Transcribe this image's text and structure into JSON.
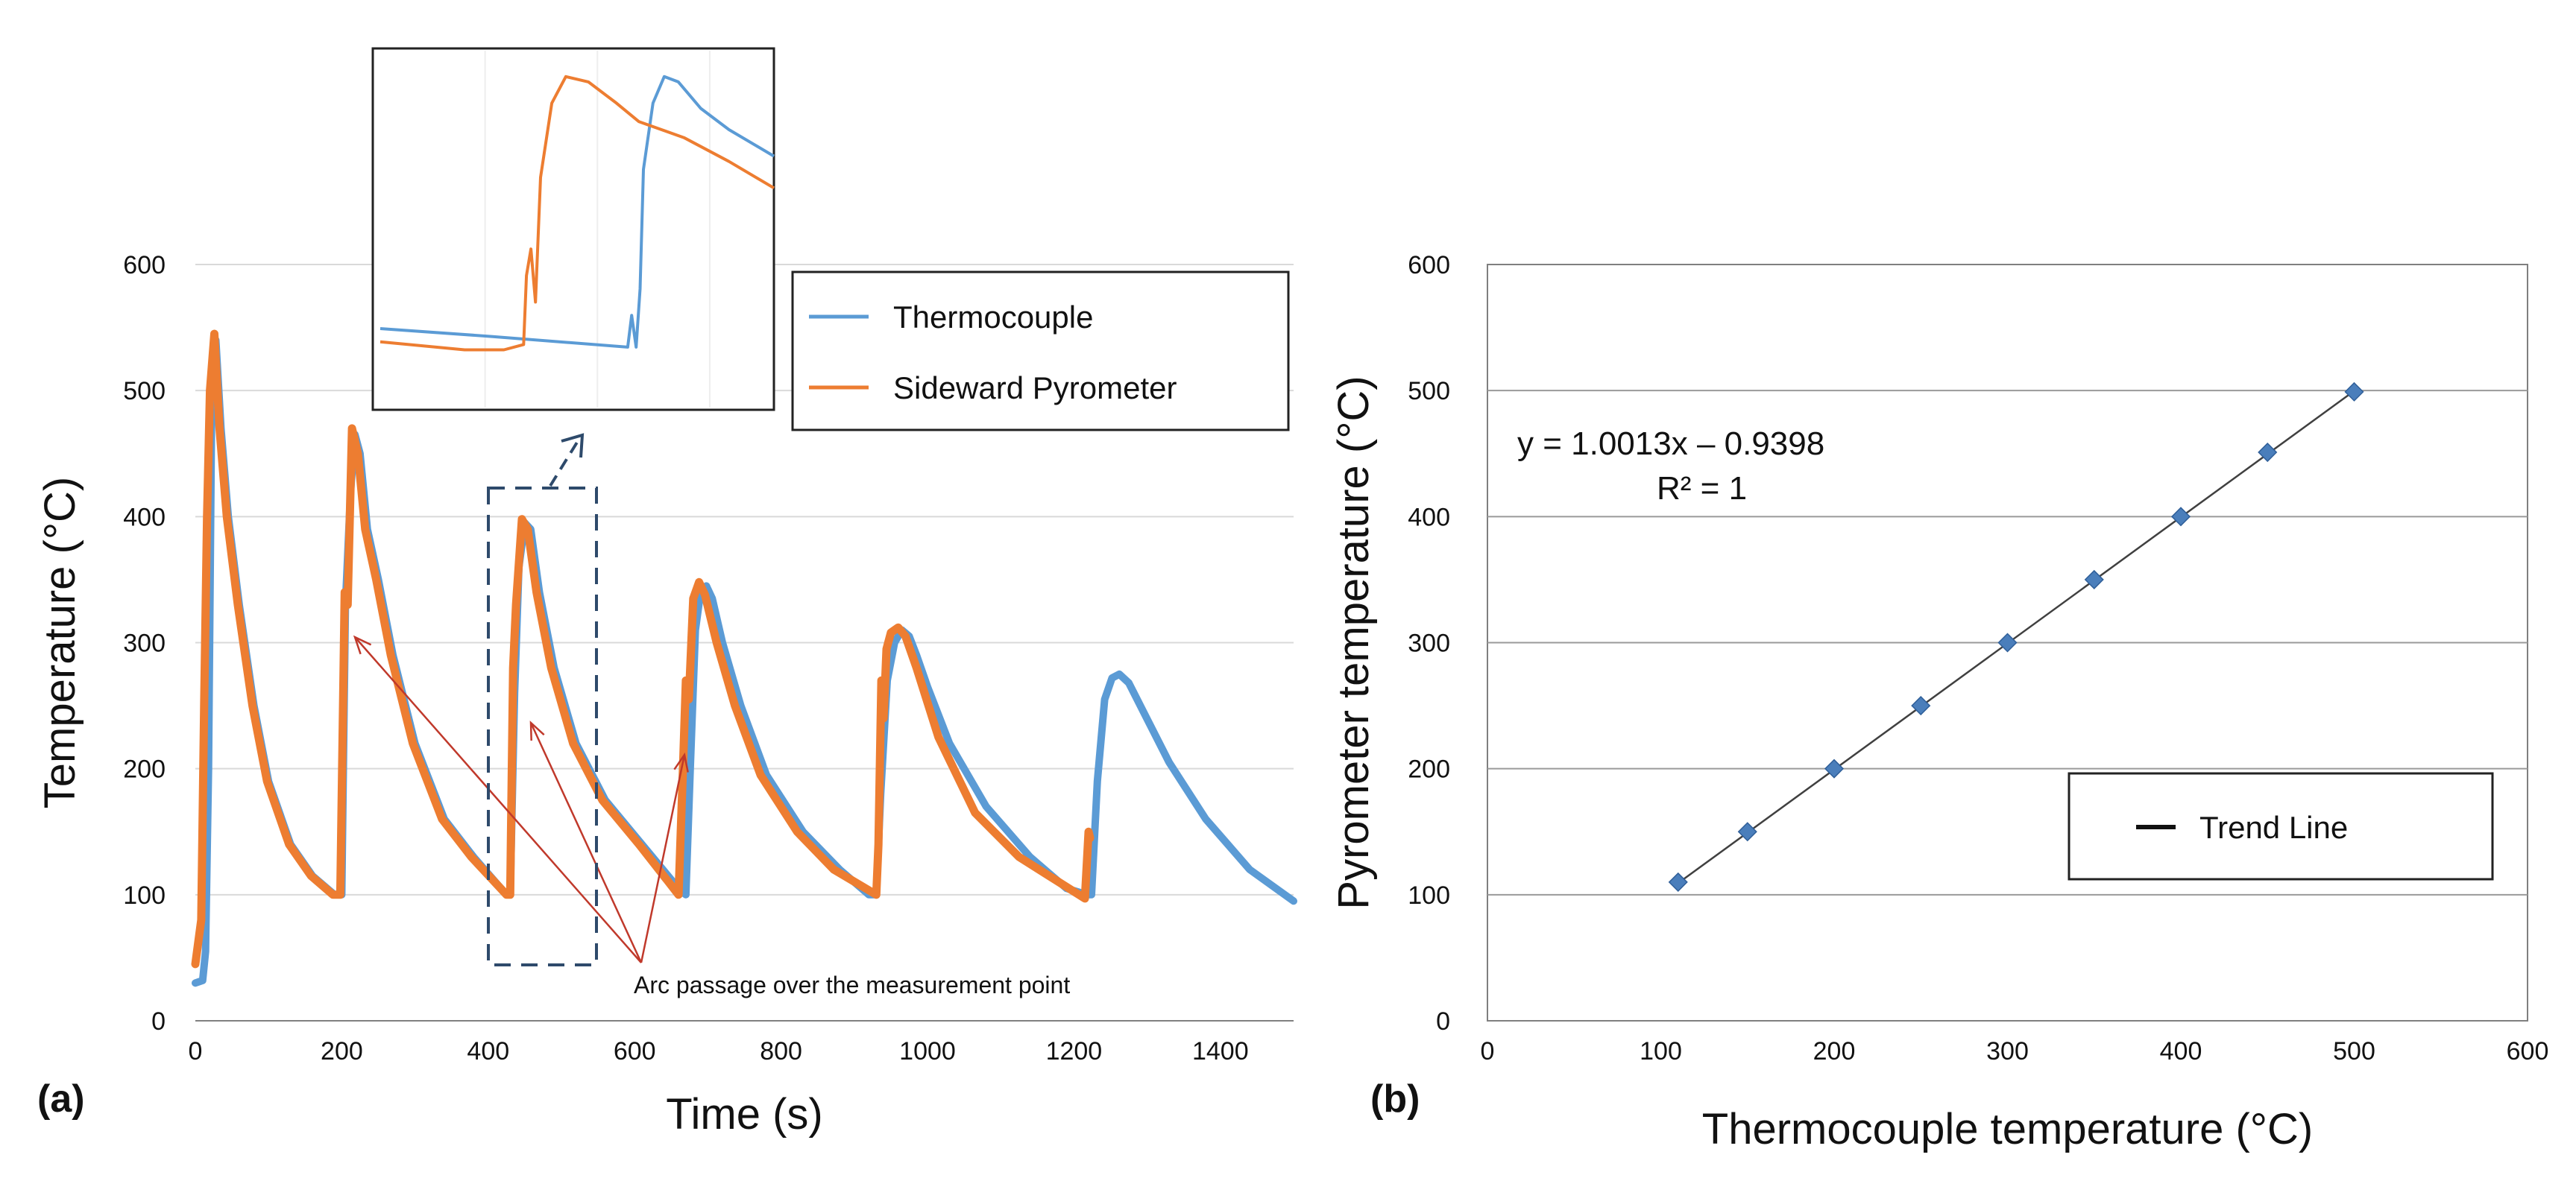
{
  "chart_data": [
    {
      "panel_label": "(a)",
      "type": "line",
      "xlabel": "Time (s)",
      "ylabel": "Temperature (°C)",
      "xlim": [
        0,
        1500
      ],
      "ylim": [
        0,
        600
      ],
      "xticks": [
        0,
        200,
        400,
        600,
        800,
        1000,
        1200,
        1400
      ],
      "yticks": [
        0,
        100,
        200,
        300,
        400,
        500,
        600
      ],
      "grid": "horizontal",
      "legend_position": "top-right",
      "series": [
        {
          "name": "Thermocouple",
          "color": "#5b9bd5",
          "x": [
            0,
            10,
            14,
            18,
            22,
            28,
            35,
            45,
            60,
            80,
            100,
            130,
            160,
            190,
            200,
            205,
            212,
            218,
            225,
            235,
            250,
            270,
            300,
            340,
            380,
            425,
            430,
            436,
            442,
            450,
            458,
            470,
            490,
            520,
            560,
            610,
            660,
            670,
            676,
            683,
            690,
            698,
            706,
            720,
            745,
            780,
            830,
            880,
            920,
            930,
            936,
            945,
            955,
            965,
            975,
            985,
            1000,
            1030,
            1080,
            1140,
            1190,
            1218,
            1224,
            1232,
            1242,
            1252,
            1262,
            1275,
            1295,
            1330,
            1380,
            1440,
            1500
          ],
          "y": [
            30,
            32,
            55,
            200,
            470,
            540,
            470,
            400,
            330,
            250,
            190,
            140,
            115,
            100,
            100,
            330,
            420,
            465,
            450,
            390,
            350,
            290,
            220,
            160,
            130,
            100,
            100,
            260,
            360,
            395,
            390,
            340,
            280,
            220,
            175,
            140,
            105,
            100,
            200,
            310,
            340,
            345,
            335,
            300,
            250,
            195,
            150,
            120,
            100,
            100,
            180,
            270,
            300,
            310,
            305,
            290,
            265,
            220,
            170,
            130,
            105,
            100,
            100,
            190,
            255,
            272,
            275,
            268,
            245,
            205,
            160,
            120,
            95
          ]
        },
        {
          "name": "Sideward Pyrometer",
          "color": "#ed7d31",
          "x": [
            0,
            8,
            12,
            16,
            20,
            26,
            33,
            43,
            58,
            78,
            98,
            128,
            158,
            188,
            198,
            204,
            208,
            214,
            222,
            232,
            247,
            267,
            297,
            337,
            377,
            425,
            430,
            434,
            438,
            446,
            454,
            466,
            486,
            516,
            556,
            606,
            660,
            666,
            670,
            674,
            680,
            688,
            696,
            712,
            737,
            772,
            822,
            872,
            930,
            933,
            937,
            940,
            944,
            950,
            960,
            970,
            985,
            1015,
            1065,
            1125,
            1215,
            1220,
            1222
          ],
          "y": [
            45,
            80,
            250,
            400,
            500,
            545,
            470,
            400,
            330,
            250,
            190,
            140,
            115,
            100,
            100,
            340,
            330,
            470,
            450,
            390,
            350,
            290,
            220,
            160,
            130,
            100,
            100,
            280,
            330,
            398,
            390,
            340,
            280,
            220,
            175,
            140,
            100,
            200,
            270,
            255,
            335,
            348,
            338,
            300,
            250,
            195,
            150,
            120,
            100,
            140,
            270,
            240,
            295,
            308,
            312,
            305,
            280,
            225,
            165,
            130,
            97,
            150,
            145
          ]
        }
      ],
      "annotation": "Arc passage over the measurement point",
      "inset": {
        "description_free": true,
        "series": [
          {
            "name": "Thermocouple",
            "x": [
              0,
              2,
              4.4,
              4.47,
              4.55,
              4.62,
              4.68,
              4.85,
              5.05,
              5.3,
              5.7,
              6.2,
              7
            ],
            "y": [
              25,
              22,
              18,
              30,
              18,
              40,
              85,
              110,
              120,
              118,
              108,
              100,
              90
            ]
          },
          {
            "name": "Sideward Pyrometer",
            "x": [
              0,
              1.5,
              2.2,
              2.55,
              2.6,
              2.68,
              2.76,
              2.85,
              3.05,
              3.3,
              3.7,
              4.2,
              4.6,
              5.4,
              6.2,
              7
            ],
            "y": [
              20,
              17,
              17,
              19,
              45,
              55,
              35,
              82,
              110,
              120,
              118,
              110,
              103,
              97,
              88,
              78
            ]
          }
        ]
      }
    },
    {
      "panel_label": "(b)",
      "type": "scatter",
      "xlabel": "Thermocouple temperature (°C)",
      "ylabel": "Pyrometer temperature (°C)",
      "xlim": [
        0,
        600
      ],
      "ylim": [
        0,
        600
      ],
      "xticks": [
        0,
        100,
        200,
        300,
        400,
        500,
        600
      ],
      "yticks": [
        0,
        100,
        200,
        300,
        400,
        500,
        600
      ],
      "grid": "horizontal",
      "legend_position": "bottom-right",
      "marker_color": "#4a7ebb",
      "points": [
        {
          "x": 110,
          "y": 110
        },
        {
          "x": 150,
          "y": 150
        },
        {
          "x": 200,
          "y": 200
        },
        {
          "x": 250,
          "y": 250
        },
        {
          "x": 300,
          "y": 300
        },
        {
          "x": 350,
          "y": 350
        },
        {
          "x": 400,
          "y": 400
        },
        {
          "x": 450,
          "y": 451
        },
        {
          "x": 500,
          "y": 499
        }
      ],
      "trend_line": {
        "name": "Trend Line",
        "slope": 1.0013,
        "intercept": -0.9398,
        "x_range": [
          110,
          500
        ],
        "equation": "y = 1.0013x – 0.9398",
        "r_squared": "R² = 1"
      }
    }
  ]
}
